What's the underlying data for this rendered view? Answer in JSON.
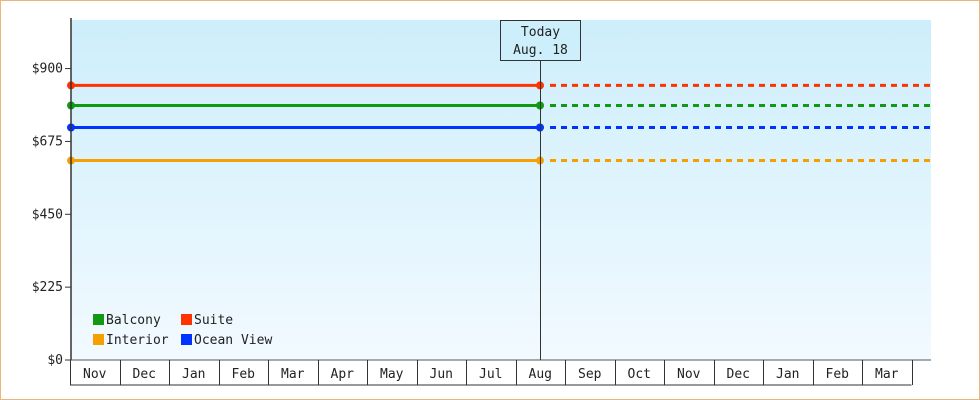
{
  "chart_data": {
    "type": "line",
    "ylim": [
      0,
      1050
    ],
    "y_ticks": [
      {
        "value": 0,
        "label": "$0"
      },
      {
        "value": 225,
        "label": "$225"
      },
      {
        "value": 450,
        "label": "$450"
      },
      {
        "value": 675,
        "label": "$675"
      },
      {
        "value": 900,
        "label": "$900"
      }
    ],
    "categories": [
      "Nov",
      "Dec",
      "Jan",
      "Feb",
      "Mar",
      "Apr",
      "May",
      "Jun",
      "Jul",
      "Aug",
      "Sep",
      "Oct",
      "Nov",
      "Dec",
      "Jan",
      "Feb",
      "Mar"
    ],
    "today": {
      "line1": "Today",
      "line2": "Aug. 18"
    },
    "series": [
      {
        "name": "Suite",
        "color": "#ff3300",
        "start_value": 848,
        "end_value": 848
      },
      {
        "name": "Balcony",
        "color": "#119911",
        "start_value": 786,
        "end_value": 786
      },
      {
        "name": "Ocean View",
        "color": "#0033ff",
        "start_value": 718,
        "end_value": 718
      },
      {
        "name": "Interior",
        "color": "#f5a000",
        "start_value": 616,
        "end_value": 616
      }
    ],
    "legend": {
      "placement": "bottom-left",
      "items": [
        {
          "name": "Balcony",
          "color": "#119911"
        },
        {
          "name": "Suite",
          "color": "#ff3300"
        },
        {
          "name": "Interior",
          "color": "#f5a000"
        },
        {
          "name": "Ocean View",
          "color": "#0033ff"
        }
      ]
    },
    "background_gradient": [
      "#cdeefb",
      "#f2faff"
    ],
    "border_color": "#e8b77e"
  }
}
